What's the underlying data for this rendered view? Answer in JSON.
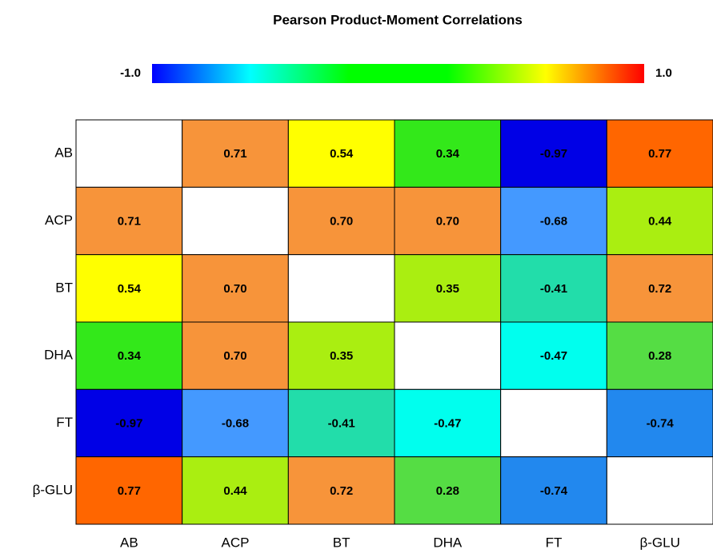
{
  "chart_data": {
    "type": "heatmap",
    "title": "Pearson Product-Moment Correlations",
    "categories": [
      "AB",
      "ACP",
      "BT",
      "DHA",
      "FT",
      "β-GLU"
    ],
    "values": [
      [
        null,
        0.71,
        0.54,
        0.34,
        -0.97,
        0.77
      ],
      [
        0.71,
        null,
        0.7,
        0.7,
        -0.68,
        0.44
      ],
      [
        0.54,
        0.7,
        null,
        0.35,
        -0.41,
        0.72
      ],
      [
        0.34,
        0.7,
        0.35,
        null,
        -0.47,
        0.28
      ],
      [
        -0.97,
        -0.68,
        -0.41,
        -0.47,
        null,
        -0.74
      ],
      [
        0.77,
        0.44,
        0.72,
        0.28,
        -0.74,
        null
      ]
    ],
    "value_labels": [
      [
        null,
        "0.71",
        "0.54",
        "0.34",
        "-0.97",
        "0.77"
      ],
      [
        "0.71",
        null,
        "0.70",
        "0.70",
        "-0.68",
        "0.44"
      ],
      [
        "0.54",
        "0.70",
        null,
        "0.35",
        "-0.41",
        "0.72"
      ],
      [
        "0.34",
        "0.70",
        "0.35",
        null,
        "-0.47",
        "0.28"
      ],
      [
        "-0.97",
        "-0.68",
        "-0.41",
        "-0.47",
        null,
        "-0.74"
      ],
      [
        "0.77",
        "0.44",
        "0.72",
        "0.28",
        "-0.74",
        null
      ]
    ],
    "colors": [
      [
        null,
        "#f7943a",
        "#ffff00",
        "#33e81a",
        "#0000e6",
        "#ff6600"
      ],
      [
        "#f7943a",
        null,
        "#f7943a",
        "#f7943a",
        "#4499ff",
        "#aaee11"
      ],
      [
        "#ffff00",
        "#f7943a",
        null,
        "#aaee11",
        "#22ddaa",
        "#f7943a"
      ],
      [
        "#33e81a",
        "#f7943a",
        "#aaee11",
        null,
        "#00ffee",
        "#55dd44"
      ],
      [
        "#0000e6",
        "#4499ff",
        "#22ddaa",
        "#00ffee",
        null,
        "#2288ee"
      ],
      [
        "#ff6600",
        "#aaee11",
        "#f7943a",
        "#55dd44",
        "#2288ee",
        null
      ]
    ],
    "zlim": [
      -1,
      1
    ],
    "zticks": [
      {
        "value": -1,
        "label": "-1.0"
      },
      {
        "value": 1,
        "label": "1.0"
      }
    ],
    "colorscale": [
      "#0000ff",
      "#00ffff",
      "#00ff00",
      "#00ff00",
      "#ffff00",
      "#ff0000"
    ]
  }
}
